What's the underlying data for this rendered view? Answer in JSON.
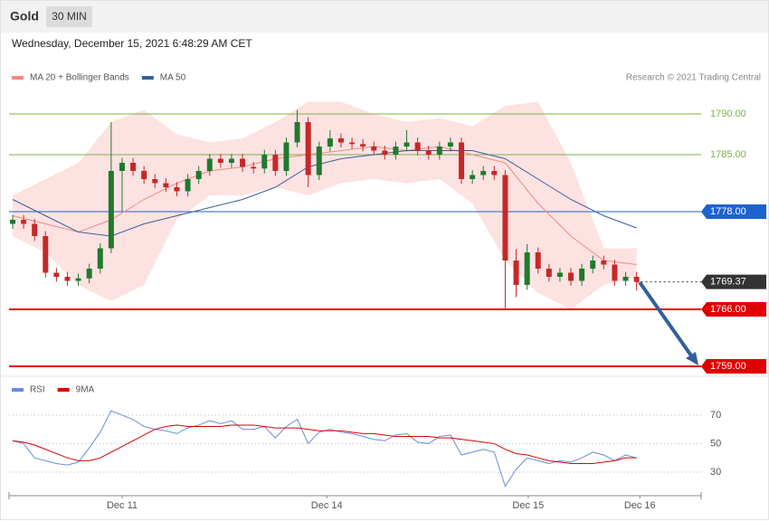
{
  "header": {
    "title": "Gold",
    "interval": "30 MIN",
    "timestamp": "Wednesday, December 15, 2021 6:48:29 AM CET"
  },
  "chart_data": [
    {
      "type": "candlestick",
      "note": "Research © 2021 Trading Central",
      "up_color": "#1f7a2e",
      "down_color": "#c62828",
      "x": [
        0,
        1,
        2,
        3,
        4,
        5,
        6,
        7,
        8,
        9,
        10,
        11,
        12,
        13,
        14,
        15,
        16,
        17,
        18,
        19,
        20,
        21,
        22,
        23,
        24,
        25,
        26,
        27,
        28,
        29,
        30,
        31,
        32,
        33,
        34,
        35,
        36,
        37,
        38,
        39,
        40,
        41,
        42,
        43,
        44,
        45,
        46,
        47,
        48,
        49,
        50,
        51,
        52,
        53,
        54,
        55,
        56,
        57
      ],
      "open": [
        1776.5,
        1777,
        1776.5,
        1775,
        1770.5,
        1770,
        1769.5,
        1769.8,
        1771,
        1773.5,
        1783,
        1784,
        1783,
        1782,
        1781.5,
        1781,
        1780.5,
        1782,
        1783,
        1784.5,
        1784,
        1784.5,
        1783.5,
        1783.3,
        1785,
        1783,
        1786.5,
        1789,
        1782.5,
        1786,
        1787,
        1786.5,
        1786.3,
        1786,
        1785.5,
        1785,
        1786,
        1786.5,
        1785.5,
        1785,
        1786,
        1786.5,
        1782,
        1782.5,
        1783,
        1782.5,
        1772,
        1769,
        1773,
        1771,
        1770,
        1770.5,
        1769.5,
        1771,
        1772,
        1771.5,
        1769.5,
        1770
      ],
      "high": [
        1777.6,
        1777.6,
        1777.1,
        1775.6,
        1771.1,
        1770.6,
        1770.4,
        1771.6,
        1774.1,
        1789,
        1784.6,
        1784.6,
        1783.6,
        1782.6,
        1782.1,
        1781.6,
        1782.6,
        1783.6,
        1785.1,
        1785.1,
        1785.1,
        1785.1,
        1784.1,
        1785.6,
        1785.6,
        1787.1,
        1790.5,
        1789.6,
        1786.6,
        1788,
        1787.6,
        1787.1,
        1786.9,
        1786.6,
        1786.1,
        1786.6,
        1788,
        1787.1,
        1786.1,
        1786.6,
        1787.1,
        1787.1,
        1783.1,
        1783.6,
        1783.6,
        1783.1,
        1773.4,
        1774,
        1773.6,
        1771.6,
        1771.1,
        1771.1,
        1771.6,
        1772.6,
        1772.6,
        1772.1,
        1770.6,
        1770.6
      ],
      "low": [
        1775.9,
        1775.9,
        1774.4,
        1769.9,
        1769.4,
        1768.9,
        1768.9,
        1769.2,
        1770.4,
        1772.9,
        1778,
        1782.4,
        1781.4,
        1780.9,
        1780.4,
        1779.9,
        1779.9,
        1781.4,
        1782.4,
        1783.4,
        1783.4,
        1782.9,
        1782.7,
        1782.7,
        1782.4,
        1782.4,
        1785.9,
        1781,
        1781.9,
        1785.4,
        1785.9,
        1785.7,
        1785.4,
        1784.9,
        1784.4,
        1784.4,
        1785.4,
        1784.9,
        1784.4,
        1784.4,
        1785.4,
        1781.4,
        1781.4,
        1781.9,
        1781.9,
        1766,
        1767.5,
        1768.4,
        1770.4,
        1769.4,
        1769.4,
        1768.9,
        1768.9,
        1770.4,
        1770.9,
        1768.9,
        1768.9,
        1768.3
      ],
      "close": [
        1777,
        1776.5,
        1775,
        1770.5,
        1770,
        1769.5,
        1769.8,
        1771,
        1773.5,
        1783,
        1784,
        1783,
        1782,
        1781.5,
        1781,
        1780.5,
        1782,
        1783,
        1784.5,
        1784,
        1784.5,
        1783.5,
        1783.3,
        1785,
        1783,
        1786.5,
        1789,
        1782.5,
        1786,
        1787,
        1786.5,
        1786.3,
        1786,
        1785.5,
        1785,
        1786,
        1786.5,
        1785.5,
        1785,
        1786,
        1786.5,
        1782,
        1782.5,
        1783,
        1782.5,
        1772,
        1769,
        1773,
        1771,
        1770,
        1770.5,
        1769.5,
        1771,
        1772,
        1771.5,
        1769.5,
        1770,
        1769.37
      ],
      "series": [
        {
          "name": "MA 20 + Bollinger Bands",
          "color": "#f28b82",
          "band_color": "#fde2e2",
          "x": [
            0,
            3,
            6,
            9,
            12,
            15,
            18,
            21,
            24,
            27,
            30,
            33,
            36,
            39,
            42,
            45,
            48,
            51,
            54,
            57
          ],
          "values": [
            1777.5,
            1776.5,
            1775.5,
            1777,
            1779.5,
            1781.5,
            1783,
            1783.5,
            1784.5,
            1785,
            1785.5,
            1786,
            1785.5,
            1786,
            1785,
            1784,
            1779,
            1775,
            1772,
            1771.5
          ],
          "upper": [
            1780,
            1782,
            1784,
            1789,
            1790.5,
            1787.5,
            1786.5,
            1787,
            1789,
            1791.5,
            1791.5,
            1790,
            1789,
            1789.5,
            1788.5,
            1791,
            1791.5,
            1784,
            1773.5,
            1773.5
          ],
          "lower": [
            1775,
            1773,
            1769,
            1767,
            1769,
            1777,
            1780,
            1780,
            1781,
            1780,
            1781.5,
            1782,
            1781.5,
            1782,
            1779,
            1772,
            1768,
            1766,
            1769,
            1770
          ]
        },
        {
          "name": "MA 50",
          "color": "#3a5f9a",
          "x": [
            0,
            3,
            6,
            9,
            12,
            15,
            18,
            21,
            24,
            27,
            30,
            33,
            36,
            39,
            42,
            45,
            48,
            51,
            54,
            57
          ],
          "values": [
            1779.5,
            1777.5,
            1775.5,
            1775,
            1776.5,
            1777.5,
            1778.5,
            1779.5,
            1781,
            1783.5,
            1784.5,
            1785,
            1785.5,
            1785.5,
            1785.5,
            1784.5,
            1782,
            1779.5,
            1777.5,
            1776
          ]
        }
      ],
      "levels": [
        {
          "value": 1790,
          "label": "1790.00",
          "color": "#7cb342",
          "label_style": "text"
        },
        {
          "value": 1785,
          "label": "1785.00",
          "color": "#7cb342",
          "label_style": "text"
        },
        {
          "value": 1778,
          "label": "1778.00",
          "color": "#1e62d0",
          "label_style": "box"
        },
        {
          "value": 1769.37,
          "label": "1769.37",
          "color": "#333333",
          "label_style": "box",
          "dashed": true
        },
        {
          "value": 1766,
          "label": "1766.00",
          "color": "#e00000",
          "label_style": "box"
        },
        {
          "value": 1759,
          "label": "1759.00",
          "color": "#e00000",
          "label_style": "box"
        }
      ],
      "xlim": [
        -0.33,
        62.9
      ],
      "ylim": [
        1758,
        1793
      ]
    },
    {
      "type": "line",
      "x": [
        0,
        1,
        2,
        3,
        4,
        5,
        6,
        7,
        8,
        9,
        10,
        11,
        12,
        13,
        14,
        15,
        16,
        17,
        18,
        19,
        20,
        21,
        22,
        23,
        24,
        25,
        26,
        27,
        28,
        29,
        30,
        31,
        32,
        33,
        34,
        35,
        36,
        37,
        38,
        39,
        40,
        41,
        42,
        43,
        44,
        45,
        46,
        47,
        48,
        49,
        50,
        51,
        52,
        53,
        54,
        55,
        56,
        57
      ],
      "series": [
        {
          "name": "RSI",
          "color": "#6a8cd8",
          "values": [
            52,
            50,
            40,
            38,
            36,
            35,
            37,
            47,
            58,
            73,
            70,
            67,
            62,
            60,
            59,
            57,
            61,
            63,
            66,
            64,
            66,
            60,
            60,
            62,
            54,
            62,
            67,
            50,
            58,
            60,
            58,
            57,
            55,
            53,
            52,
            56,
            57,
            51,
            50,
            55,
            56,
            42,
            44,
            46,
            44,
            20,
            32,
            40,
            38,
            36,
            38,
            37,
            40,
            44,
            42,
            38,
            42,
            40
          ]
        },
        {
          "name": "9MA",
          "color": "#e00000",
          "values": [
            52,
            51,
            49,
            46,
            43,
            40,
            38,
            38,
            40,
            44,
            48,
            52,
            56,
            60,
            62,
            63,
            62,
            62,
            62,
            62,
            63,
            63,
            63,
            62,
            61,
            61,
            61,
            60,
            59,
            59,
            59,
            58,
            57,
            57,
            56,
            55,
            55,
            55,
            55,
            54,
            54,
            53,
            52,
            51,
            50,
            46,
            43,
            42,
            40,
            38,
            37,
            36,
            36,
            36,
            37,
            38,
            40,
            40
          ]
        }
      ],
      "xlim": [
        -0.33,
        62.9
      ],
      "ylim": [
        16,
        82
      ],
      "yticks": [
        30,
        50,
        70
      ],
      "xticks": [
        {
          "value": 10,
          "label": "Dec 11"
        },
        {
          "value": 28.7,
          "label": "Dec 14"
        },
        {
          "value": 47.1,
          "label": "Dec 15"
        },
        {
          "value": 57.3,
          "label": "Dec 16"
        }
      ]
    }
  ]
}
